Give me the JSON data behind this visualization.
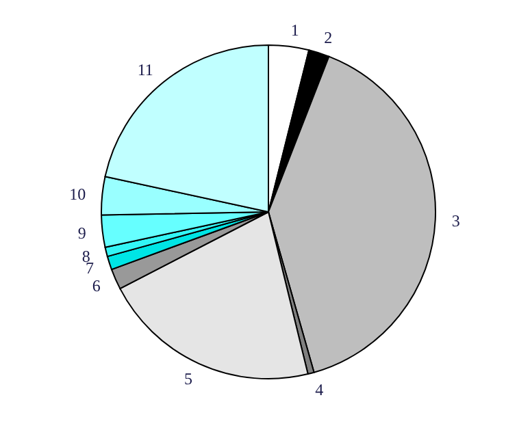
{
  "chart_data": {
    "type": "pie",
    "categories": [
      "1",
      "2",
      "3",
      "4",
      "5",
      "6",
      "7",
      "8",
      "9",
      "10",
      "11"
    ],
    "values": [
      3.9,
      2.0,
      39.7,
      0.6,
      21.2,
      2.0,
      1.3,
      0.9,
      3.1,
      3.7,
      21.6
    ],
    "colors": [
      "#ffffff",
      "#000000",
      "#bebebe",
      "#808080",
      "#e5e5e5",
      "#999999",
      "#00e5e5",
      "#33f5f5",
      "#66ffff",
      "#99ffff",
      "#c0ffff"
    ]
  }
}
